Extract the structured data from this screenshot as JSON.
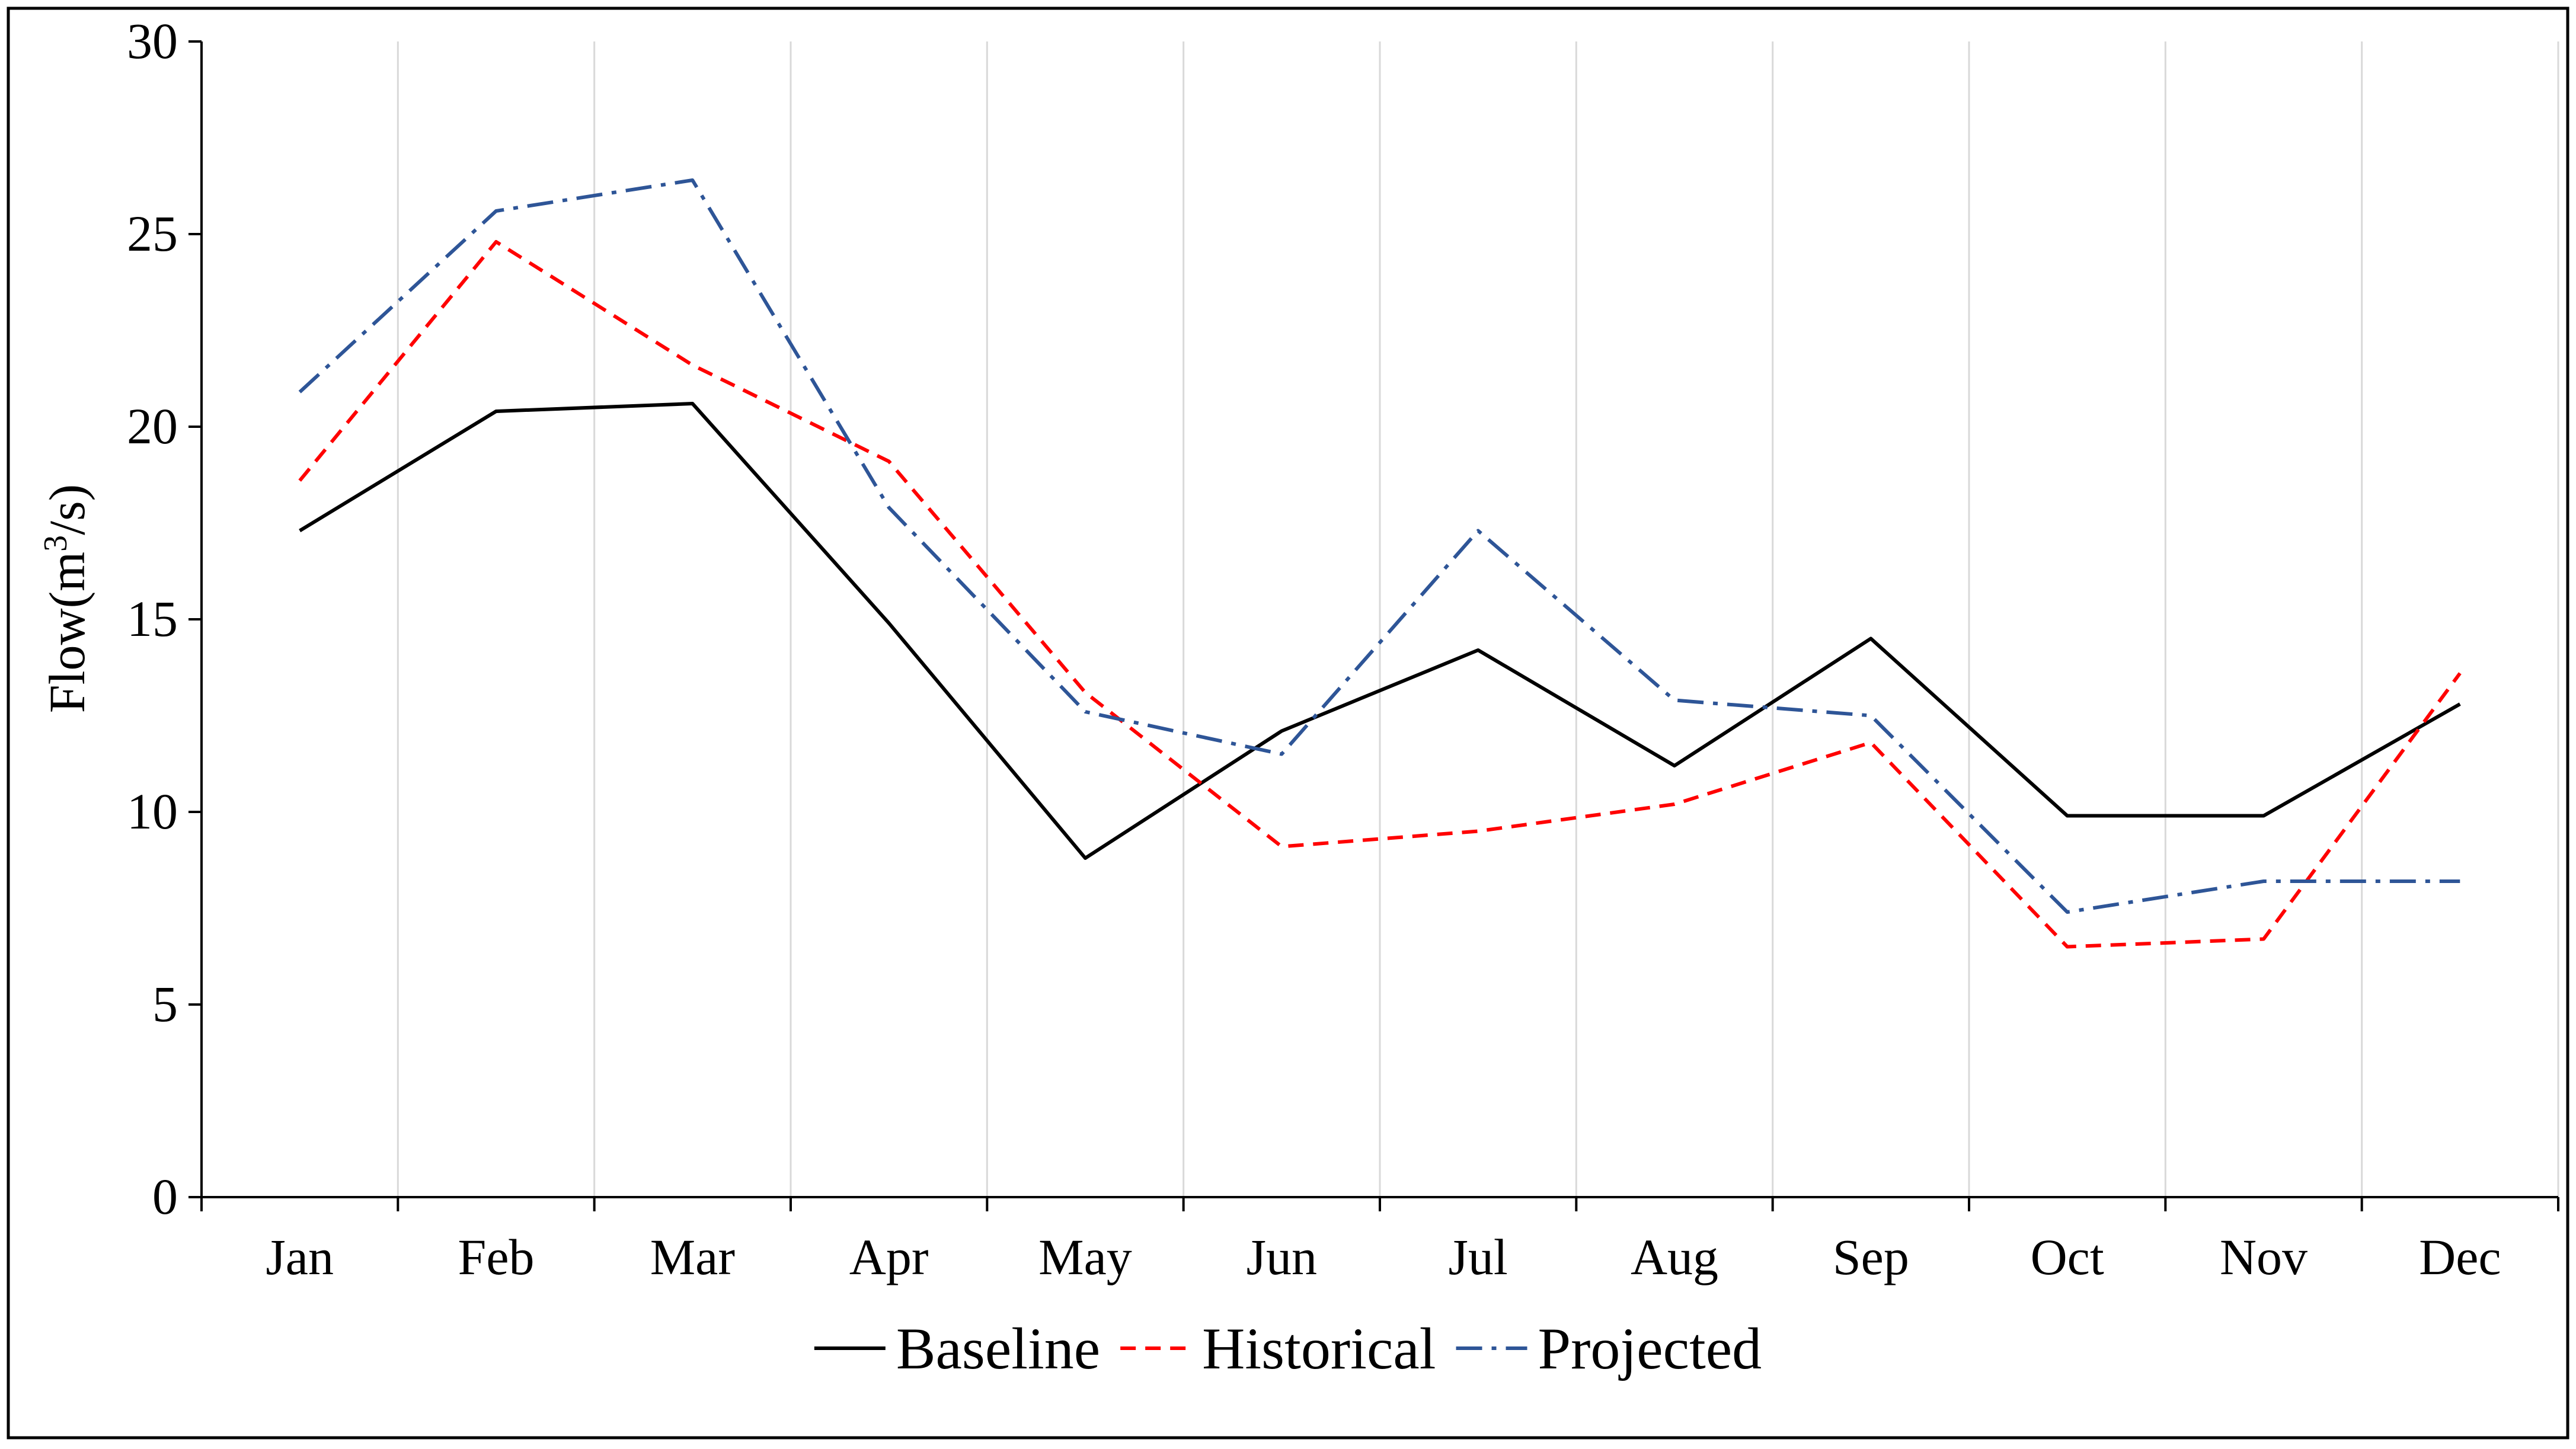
{
  "chart_data": {
    "type": "line",
    "title": "",
    "xlabel": "",
    "ylabel": "Flow(m3/s)",
    "ylabel_parts": {
      "base": "Flow(m",
      "sup": "3",
      "tail": "/s)"
    },
    "ylim": [
      0,
      30
    ],
    "yticks": [
      0,
      5,
      10,
      15,
      20,
      25,
      30
    ],
    "grid": "vertical",
    "legend_position": "bottom-center",
    "categories": [
      "Jan",
      "Feb",
      "Mar",
      "Apr",
      "May",
      "Jun",
      "Jul",
      "Aug",
      "Sep",
      "Oct",
      "Nov",
      "Dec"
    ],
    "series": [
      {
        "name": "Baseline",
        "color": "#000000",
        "dash": "solid",
        "values": [
          17.3,
          20.4,
          20.6,
          14.9,
          8.8,
          12.1,
          14.2,
          11.2,
          14.5,
          9.9,
          9.9,
          12.8
        ]
      },
      {
        "name": "Historical",
        "color": "#ff0000",
        "dash": "dashed",
        "values": [
          18.6,
          24.8,
          21.6,
          19.1,
          13.1,
          9.1,
          9.5,
          10.2,
          11.8,
          6.5,
          6.7,
          13.6
        ]
      },
      {
        "name": "Projected",
        "color": "#2e5597",
        "dash": "dashdot",
        "values": [
          20.9,
          25.6,
          26.4,
          17.9,
          12.6,
          11.5,
          17.3,
          12.9,
          12.5,
          7.4,
          8.2,
          8.2
        ]
      }
    ]
  }
}
